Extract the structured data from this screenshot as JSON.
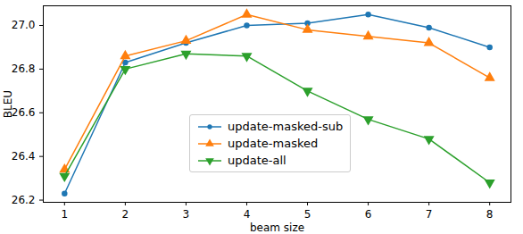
{
  "chart_data": {
    "type": "line",
    "x_label": "beam size",
    "y_label": "BLEU",
    "x": [
      1,
      2,
      3,
      4,
      5,
      6,
      7,
      8
    ],
    "series": [
      {
        "name": "update-masked-sub",
        "color": "#1f77b4",
        "marker": "circle",
        "values": [
          26.23,
          26.83,
          26.92,
          27.0,
          27.01,
          27.05,
          26.99,
          26.9
        ]
      },
      {
        "name": "update-masked",
        "color": "#ff7f0e",
        "marker": "triangle_up",
        "values": [
          26.34,
          26.86,
          26.93,
          27.05,
          26.98,
          26.95,
          26.92,
          26.76
        ]
      },
      {
        "name": "update-all",
        "color": "#2ca02c",
        "marker": "triangle_down",
        "values": [
          26.31,
          26.8,
          26.87,
          26.86,
          26.7,
          26.57,
          26.48,
          26.28
        ]
      }
    ],
    "xlim": [
      0.65,
      8.35
    ],
    "xticks": [
      1,
      2,
      3,
      4,
      5,
      6,
      7,
      8
    ],
    "ylim": [
      26.19,
      27.09
    ],
    "yticks": [
      26.2,
      26.4,
      26.6,
      26.8,
      {
        "value": 27,
        "label": "27.0"
      }
    ],
    "grid": false,
    "legend": "lower center"
  }
}
